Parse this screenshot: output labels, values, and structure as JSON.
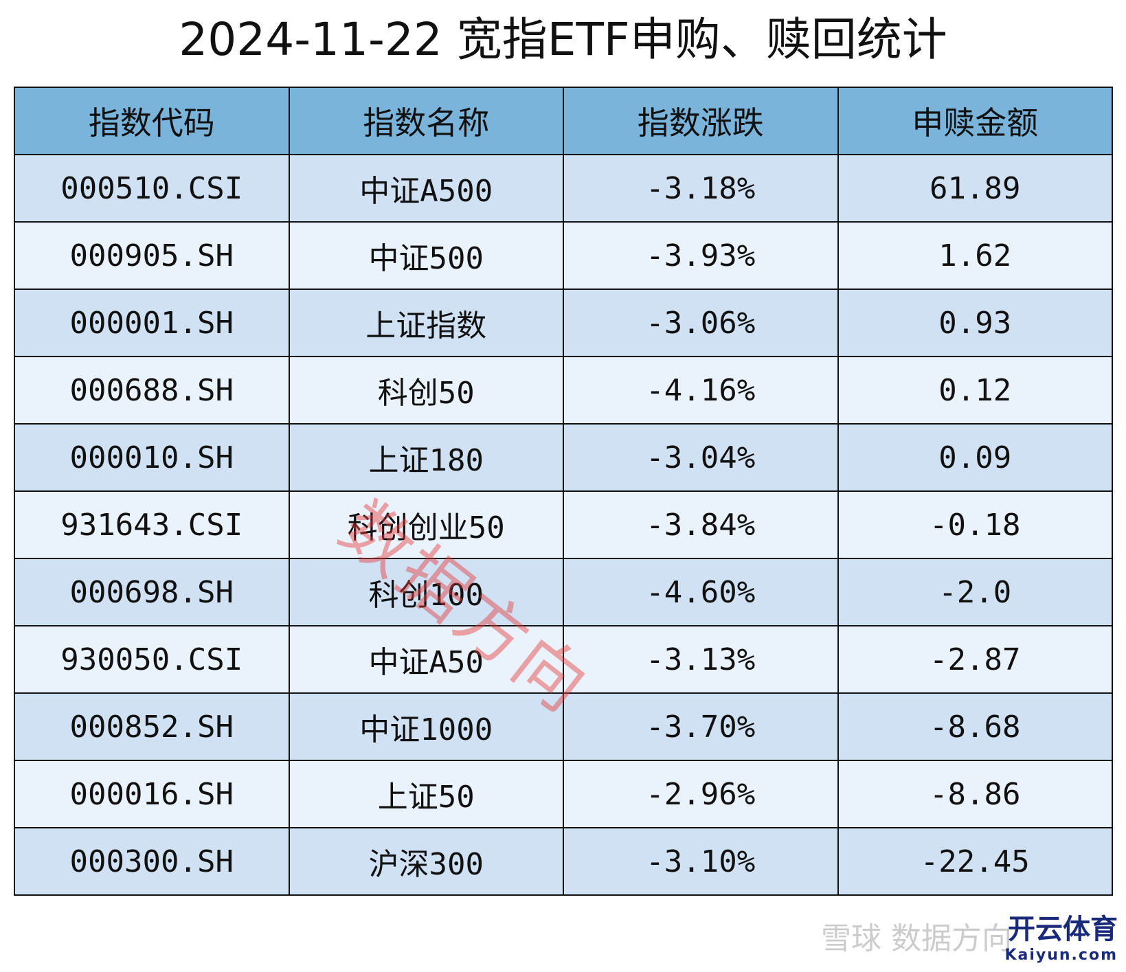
{
  "title": "2024-11-22 宽指ETF申购、赎回统计",
  "table": {
    "header": [
      "指数代码",
      "指数名称",
      "指数涨跌",
      "申赎金额"
    ],
    "rows": [
      [
        "000510.CSI",
        "中证A500",
        "-3.18%",
        "61.89"
      ],
      [
        "000905.SH",
        "中证500",
        "-3.93%",
        "1.62"
      ],
      [
        "000001.SH",
        "上证指数",
        "-3.06%",
        "0.93"
      ],
      [
        "000688.SH",
        "科创50",
        "-4.16%",
        "0.12"
      ],
      [
        "000010.SH",
        "上证180",
        "-3.04%",
        "0.09"
      ],
      [
        "931643.CSI",
        "科创创业50",
        "-3.84%",
        "-0.18"
      ],
      [
        "000698.SH",
        "科创100",
        "-4.60%",
        "-2.0"
      ],
      [
        "930050.CSI",
        "中证A50",
        "-3.13%",
        "-2.87"
      ],
      [
        "000852.SH",
        "中证1000",
        "-3.70%",
        "-8.68"
      ],
      [
        "000016.SH",
        "上证50",
        "-2.96%",
        "-8.86"
      ],
      [
        "000300.SH",
        "沪深300",
        "-3.10%",
        "-22.45"
      ]
    ]
  },
  "watermark": "数据方向",
  "footer": {
    "source": "雪球",
    "source_name": "数据方向",
    "logo": "开云体育",
    "logo_url": "Kaiyun.com"
  }
}
